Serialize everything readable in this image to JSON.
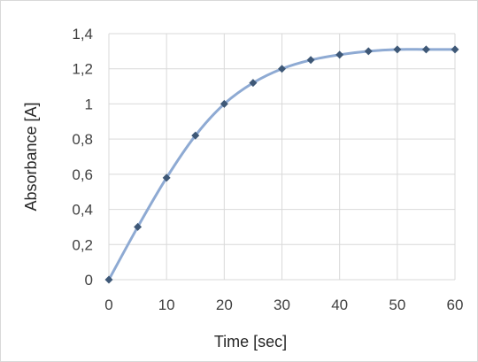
{
  "chart_data": {
    "type": "line",
    "title": "",
    "xlabel": "Time [sec]",
    "ylabel": "Absorbance [A]",
    "xlim": [
      0,
      60
    ],
    "ylim": [
      0,
      1.4
    ],
    "x_ticks": [
      "0",
      "10",
      "20",
      "30",
      "40",
      "50",
      "60"
    ],
    "y_ticks": [
      "0",
      "0,2",
      "0,4",
      "0,6",
      "0,8",
      "1",
      "1,2",
      "1,4"
    ],
    "grid": true,
    "legend": "none",
    "series": [
      {
        "x": [
          0,
          5,
          10,
          15,
          20,
          25,
          30,
          35,
          40,
          45,
          50,
          55,
          60
        ],
        "values": [
          0,
          0.3,
          0.58,
          0.82,
          1.0,
          1.12,
          1.2,
          1.25,
          1.28,
          1.3,
          1.31,
          1.31,
          1.31
        ]
      }
    ],
    "colors": {
      "line": "#8eaad3",
      "marker": "#3e5877",
      "grid": "#d9d9d9"
    }
  }
}
